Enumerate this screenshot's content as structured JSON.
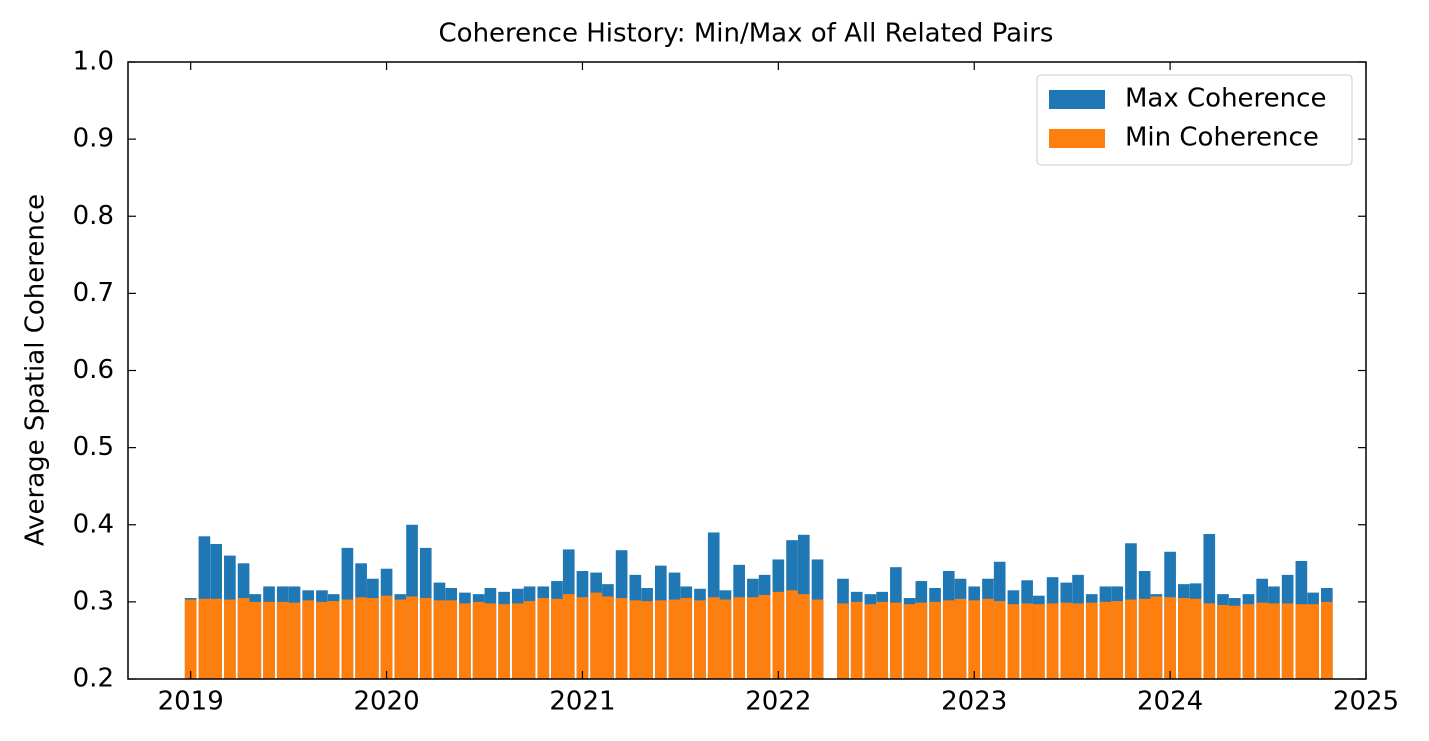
{
  "chart_data": {
    "type": "bar",
    "title": "Coherence History: Min/Max of All Related Pairs",
    "y_label": "Average Spatial Coherence",
    "x": [
      2019.0,
      2019.07,
      2019.13,
      2019.2,
      2019.27,
      2019.33,
      2019.4,
      2019.47,
      2019.53,
      2019.6,
      2019.67,
      2019.73,
      2019.8,
      2019.87,
      2019.93,
      2020.0,
      2020.07,
      2020.13,
      2020.2,
      2020.27,
      2020.33,
      2020.4,
      2020.47,
      2020.53,
      2020.6,
      2020.67,
      2020.73,
      2020.8,
      2020.87,
      2020.93,
      2021.0,
      2021.07,
      2021.13,
      2021.2,
      2021.27,
      2021.33,
      2021.4,
      2021.47,
      2021.53,
      2021.6,
      2021.67,
      2021.73,
      2021.8,
      2021.87,
      2021.93,
      2022.0,
      2022.07,
      2022.13,
      2022.2,
      2022.27,
      2022.33,
      2022.4,
      2022.47,
      2022.53,
      2022.6,
      2022.67,
      2022.73,
      2022.8,
      2022.87,
      2022.93,
      2023.0,
      2023.07,
      2023.13,
      2023.2,
      2023.27,
      2023.33,
      2023.4,
      2023.47,
      2023.53,
      2023.6,
      2023.67,
      2023.73,
      2023.8,
      2023.87,
      2023.93,
      2024.0,
      2024.07,
      2024.13,
      2024.2,
      2024.27,
      2024.33,
      2024.4,
      2024.47,
      2024.53,
      2024.6,
      2024.67,
      2024.73,
      2024.8
    ],
    "series": [
      {
        "name": "Max Coherence",
        "color": "#1f77b4",
        "values": [
          0.305,
          0.385,
          0.375,
          0.36,
          0.35,
          0.31,
          0.32,
          0.32,
          0.32,
          0.315,
          0.315,
          0.31,
          0.37,
          0.35,
          0.33,
          0.343,
          0.31,
          0.4,
          0.37,
          0.325,
          0.318,
          0.312,
          0.31,
          0.318,
          0.313,
          0.317,
          0.32,
          0.32,
          0.327,
          0.368,
          0.34,
          0.338,
          0.323,
          0.367,
          0.335,
          0.318,
          0.347,
          0.338,
          0.32,
          0.317,
          0.39,
          0.315,
          0.348,
          0.33,
          0.335,
          0.355,
          0.38,
          0.387,
          0.355,
          null,
          0.33,
          0.313,
          0.31,
          0.313,
          0.345,
          0.305,
          0.327,
          0.318,
          0.34,
          0.33,
          0.32,
          0.33,
          0.352,
          0.315,
          0.328,
          0.308,
          0.332,
          0.325,
          0.335,
          0.31,
          0.32,
          0.32,
          0.376,
          0.34,
          0.31,
          0.365,
          0.323,
          0.324,
          0.388,
          0.31,
          0.305,
          0.31,
          0.33,
          0.32,
          0.335,
          0.353,
          0.312,
          0.318
        ]
      },
      {
        "name": "Min Coherence",
        "color": "#ff7f0e",
        "values": [
          0.303,
          0.304,
          0.304,
          0.303,
          0.305,
          0.3,
          0.3,
          0.3,
          0.299,
          0.302,
          0.3,
          0.301,
          0.303,
          0.306,
          0.305,
          0.308,
          0.303,
          0.307,
          0.305,
          0.302,
          0.302,
          0.298,
          0.3,
          0.298,
          0.297,
          0.298,
          0.301,
          0.305,
          0.304,
          0.31,
          0.306,
          0.312,
          0.307,
          0.305,
          0.302,
          0.301,
          0.302,
          0.303,
          0.305,
          0.302,
          0.306,
          0.303,
          0.306,
          0.306,
          0.309,
          0.313,
          0.315,
          0.31,
          0.303,
          null,
          0.298,
          0.3,
          0.297,
          0.3,
          0.299,
          0.297,
          0.299,
          0.3,
          0.302,
          0.304,
          0.302,
          0.304,
          0.301,
          0.297,
          0.298,
          0.297,
          0.298,
          0.299,
          0.298,
          0.299,
          0.3,
          0.301,
          0.303,
          0.304,
          0.307,
          0.306,
          0.305,
          0.304,
          0.298,
          0.296,
          0.295,
          0.297,
          0.299,
          0.298,
          0.298,
          0.297,
          0.297,
          0.3
        ]
      }
    ],
    "xlim": [
      2018.68,
      2025.0
    ],
    "xticks": [
      2019,
      2020,
      2021,
      2022,
      2023,
      2024,
      2025
    ],
    "ylim": [
      0.2,
      1.0
    ],
    "yticks": [
      0.2,
      0.3,
      0.4,
      0.5,
      0.6,
      0.7,
      0.8,
      0.9,
      {
        "value": 1.0,
        "label": "1.0"
      }
    ],
    "legend": "upper right"
  }
}
